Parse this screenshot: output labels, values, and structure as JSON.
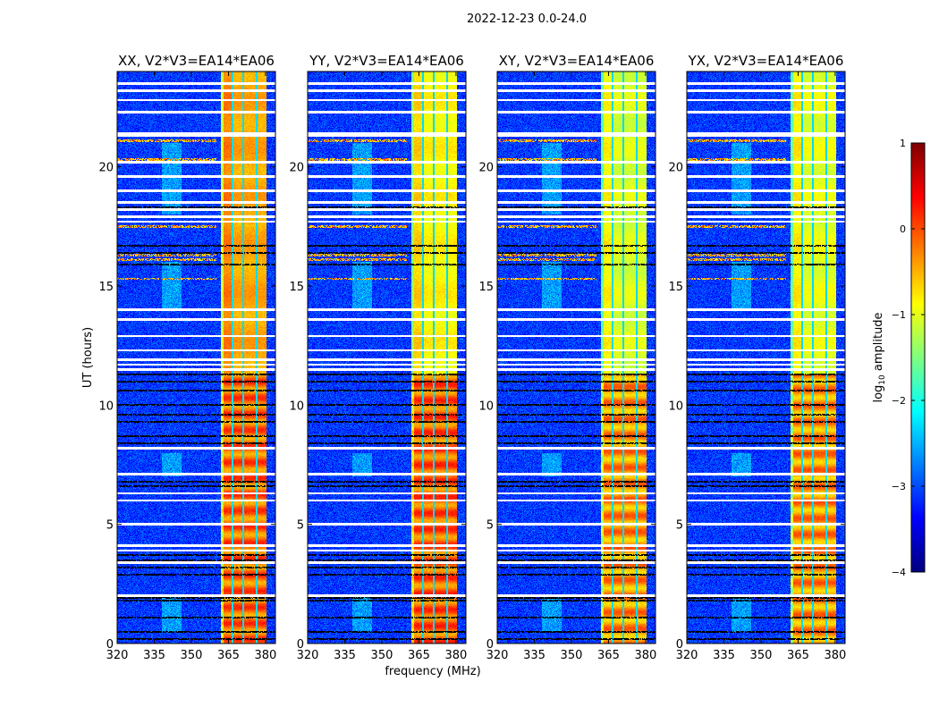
{
  "chart_data": {
    "type": "heatmap",
    "suptitle": "2022-12-23 0.0-24.0",
    "xlabel": "frequency (MHz)",
    "ylabel": "UT (hours)",
    "xlim": [
      320,
      384
    ],
    "ylim": [
      0,
      24
    ],
    "xticks": [
      320,
      335,
      350,
      365,
      380
    ],
    "yticks": [
      0,
      5,
      10,
      15,
      20
    ],
    "colorbar": {
      "label_main": "log",
      "label_sub": "10",
      "label_rest": " amplitude",
      "range": [
        -4,
        1
      ],
      "ticks": [
        1,
        0,
        -1,
        -2,
        -3,
        -4
      ],
      "colormap": "jet"
    },
    "background_level": -3.1,
    "band_range_mhz": [
      362,
      380.5
    ],
    "subband_edges_mhz": [
      366.6,
      371.1,
      376.4
    ],
    "level_change_hour": 11.3,
    "flagged_hours_white": [
      23.5,
      23.2,
      22.8,
      22.3,
      21.4,
      21.3,
      20.2,
      19.6,
      19.0,
      18.5,
      18.2,
      17.9,
      17.7,
      14.0,
      13.6,
      12.9,
      12.3,
      11.9,
      11.7,
      11.5,
      8.2,
      7.1,
      6.3,
      6.0,
      5.0,
      4.1,
      3.9,
      3.4,
      2.0
    ],
    "dark_hours": [
      18.3,
      16.7,
      16.4,
      15.9,
      11.3,
      11.0,
      10.6,
      10.0,
      9.6,
      9.3,
      8.7,
      8.4,
      6.8,
      6.6,
      3.7,
      3.5,
      3.2,
      2.9,
      1.9,
      1.8,
      1.1,
      0.5,
      0.2
    ],
    "rfi_hours": [
      21.1,
      20.3,
      17.5,
      16.3,
      16.1,
      15.3
    ],
    "panels": [
      {
        "title": "XX, V2*V3=EA14*EA06",
        "late_level": -0.45,
        "early_level": -0.15
      },
      {
        "title": "YY, V2*V3=EA14*EA06",
        "late_level": -0.85,
        "early_level": -0.1
      },
      {
        "title": "XY, V2*V3=EA14*EA06",
        "late_level": -1.05,
        "early_level": -0.35
      },
      {
        "title": "YX, V2*V3=EA14*EA06",
        "late_level": -1.0,
        "early_level": -0.35
      }
    ]
  }
}
